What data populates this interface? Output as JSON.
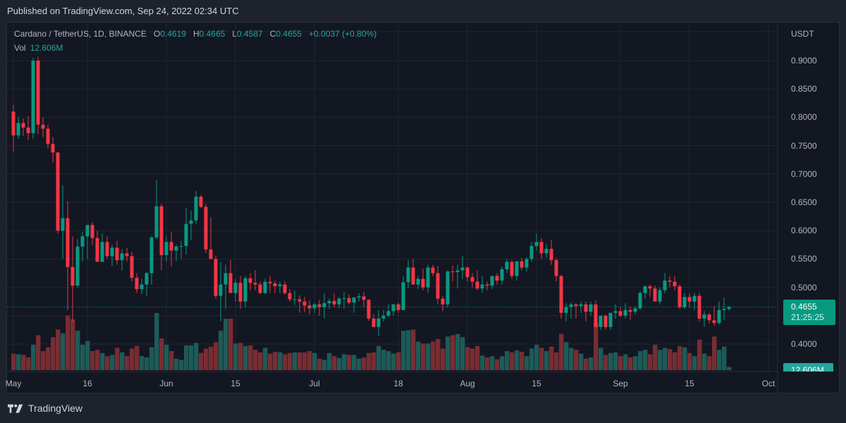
{
  "header": {
    "published": "Published on TradingView.com, Sep 24, 2022 02:34 UTC"
  },
  "legend": {
    "symbol": "Cardano / TetherUS, 1D, BINANCE",
    "o_label": "O",
    "o": "0.4619",
    "h_label": "H",
    "h": "0.4665",
    "l_label": "L",
    "l": "0.4587",
    "c_label": "C",
    "c": "0.4655",
    "change": "+0.0037 (+0.80%)",
    "vol_label": "Vol",
    "vol": "12.606M"
  },
  "price_axis": {
    "unit": "USDT",
    "current_price": "0.4655",
    "countdown": "21:25:25",
    "volume_tag": "12.606M"
  },
  "footer": {
    "brand": "TradingView"
  },
  "colors": {
    "up": "#089981",
    "down": "#f23645",
    "vol_up": "#1e5f5b",
    "vol_down": "#7d2e34",
    "background": "#131722",
    "grid": "#222631"
  },
  "chart_data": {
    "type": "candlestick",
    "title": "Cardano / TetherUS, 1D, BINANCE",
    "ylabel": "USDT",
    "ylim": [
      0.37,
      0.93
    ],
    "y_ticks": [
      "0.9000",
      "0.8500",
      "0.8000",
      "0.7500",
      "0.7000",
      "0.6500",
      "0.6000",
      "0.5500",
      "0.5000",
      "0.4000"
    ],
    "x_ticks": [
      {
        "label": "May",
        "day": 0
      },
      {
        "label": "16",
        "day": 15
      },
      {
        "label": "Jun",
        "day": 31
      },
      {
        "label": "15",
        "day": 45
      },
      {
        "label": "Jul",
        "day": 61
      },
      {
        "label": "18",
        "day": 78
      },
      {
        "label": "Aug",
        "day": 92
      },
      {
        "label": "15",
        "day": 106
      },
      {
        "label": "Sep",
        "day": 123
      },
      {
        "label": "15",
        "day": 137
      },
      {
        "label": "Oct",
        "day": 153
      }
    ],
    "start_date": "2022-04-30",
    "grid": true,
    "current_price": 0.4655,
    "series_note": "OHLC and volume (relative 0-1) per day, estimated from pixels",
    "ohlcv": [
      [
        0.81,
        0.822,
        0.74,
        0.768,
        0.26
      ],
      [
        0.768,
        0.8,
        0.762,
        0.79,
        0.25
      ],
      [
        0.79,
        0.798,
        0.767,
        0.782,
        0.24
      ],
      [
        0.782,
        0.802,
        0.76,
        0.772,
        0.2
      ],
      [
        0.772,
        0.905,
        0.762,
        0.9,
        0.4
      ],
      [
        0.9,
        0.907,
        0.77,
        0.787,
        0.55
      ],
      [
        0.787,
        0.8,
        0.765,
        0.78,
        0.3
      ],
      [
        0.78,
        0.787,
        0.745,
        0.753,
        0.36
      ],
      [
        0.753,
        0.765,
        0.72,
        0.738,
        0.52
      ],
      [
        0.738,
        0.738,
        0.595,
        0.6,
        0.64
      ],
      [
        0.6,
        0.68,
        0.55,
        0.622,
        0.58
      ],
      [
        0.622,
        0.652,
        0.46,
        0.536,
        0.86
      ],
      [
        0.536,
        0.59,
        0.44,
        0.503,
        0.8
      ],
      [
        0.503,
        0.585,
        0.5,
        0.572,
        0.62
      ],
      [
        0.572,
        0.598,
        0.545,
        0.59,
        0.4
      ],
      [
        0.59,
        0.61,
        0.55,
        0.61,
        0.46
      ],
      [
        0.61,
        0.615,
        0.575,
        0.587,
        0.3
      ],
      [
        0.587,
        0.6,
        0.545,
        0.545,
        0.32
      ],
      [
        0.545,
        0.595,
        0.545,
        0.58,
        0.27
      ],
      [
        0.58,
        0.59,
        0.55,
        0.555,
        0.22
      ],
      [
        0.555,
        0.575,
        0.538,
        0.57,
        0.24
      ],
      [
        0.57,
        0.582,
        0.54,
        0.548,
        0.35
      ],
      [
        0.548,
        0.567,
        0.53,
        0.56,
        0.28
      ],
      [
        0.56,
        0.57,
        0.546,
        0.555,
        0.22
      ],
      [
        0.555,
        0.563,
        0.51,
        0.517,
        0.34
      ],
      [
        0.517,
        0.525,
        0.49,
        0.497,
        0.38
      ],
      [
        0.497,
        0.515,
        0.488,
        0.505,
        0.22
      ],
      [
        0.505,
        0.528,
        0.484,
        0.525,
        0.2
      ],
      [
        0.525,
        0.59,
        0.505,
        0.588,
        0.36
      ],
      [
        0.588,
        0.69,
        0.585,
        0.643,
        0.9
      ],
      [
        0.643,
        0.647,
        0.53,
        0.557,
        0.5
      ],
      [
        0.557,
        0.59,
        0.545,
        0.58,
        0.4
      ],
      [
        0.58,
        0.598,
        0.537,
        0.565,
        0.3
      ],
      [
        0.565,
        0.575,
        0.546,
        0.572,
        0.18
      ],
      [
        0.572,
        0.582,
        0.55,
        0.573,
        0.16
      ],
      [
        0.573,
        0.64,
        0.558,
        0.612,
        0.39
      ],
      [
        0.612,
        0.636,
        0.583,
        0.618,
        0.39
      ],
      [
        0.618,
        0.67,
        0.612,
        0.66,
        0.43
      ],
      [
        0.66,
        0.663,
        0.64,
        0.642,
        0.27
      ],
      [
        0.642,
        0.647,
        0.56,
        0.567,
        0.34
      ],
      [
        0.567,
        0.624,
        0.55,
        0.55,
        0.37
      ],
      [
        0.55,
        0.556,
        0.48,
        0.485,
        0.44
      ],
      [
        0.485,
        0.545,
        0.44,
        0.505,
        0.62
      ],
      [
        0.505,
        0.54,
        0.462,
        0.525,
        0.81
      ],
      [
        0.525,
        0.548,
        0.492,
        0.49,
        0.81
      ],
      [
        0.49,
        0.515,
        0.475,
        0.508,
        0.42
      ],
      [
        0.508,
        0.52,
        0.462,
        0.475,
        0.43
      ],
      [
        0.475,
        0.52,
        0.465,
        0.516,
        0.38
      ],
      [
        0.516,
        0.525,
        0.495,
        0.508,
        0.39
      ],
      [
        0.508,
        0.53,
        0.495,
        0.505,
        0.32
      ],
      [
        0.505,
        0.51,
        0.488,
        0.49,
        0.28
      ],
      [
        0.49,
        0.515,
        0.488,
        0.51,
        0.35
      ],
      [
        0.51,
        0.52,
        0.49,
        0.507,
        0.26
      ],
      [
        0.507,
        0.512,
        0.49,
        0.502,
        0.29
      ],
      [
        0.502,
        0.51,
        0.49,
        0.505,
        0.28
      ],
      [
        0.505,
        0.511,
        0.487,
        0.49,
        0.25
      ],
      [
        0.49,
        0.497,
        0.475,
        0.479,
        0.27
      ],
      [
        0.479,
        0.494,
        0.469,
        0.479,
        0.28
      ],
      [
        0.479,
        0.486,
        0.455,
        0.475,
        0.28
      ],
      [
        0.475,
        0.483,
        0.456,
        0.468,
        0.28
      ],
      [
        0.468,
        0.477,
        0.452,
        0.463,
        0.3
      ],
      [
        0.463,
        0.473,
        0.455,
        0.47,
        0.27
      ],
      [
        0.47,
        0.478,
        0.45,
        0.465,
        0.18
      ],
      [
        0.465,
        0.49,
        0.445,
        0.472,
        0.16
      ],
      [
        0.472,
        0.48,
        0.462,
        0.476,
        0.27
      ],
      [
        0.476,
        0.49,
        0.465,
        0.47,
        0.22
      ],
      [
        0.47,
        0.483,
        0.463,
        0.48,
        0.19
      ],
      [
        0.48,
        0.492,
        0.462,
        0.481,
        0.25
      ],
      [
        0.481,
        0.487,
        0.47,
        0.473,
        0.24
      ],
      [
        0.473,
        0.483,
        0.455,
        0.482,
        0.24
      ],
      [
        0.482,
        0.49,
        0.475,
        0.484,
        0.18
      ],
      [
        0.484,
        0.492,
        0.465,
        0.478,
        0.2
      ],
      [
        0.478,
        0.479,
        0.441,
        0.445,
        0.27
      ],
      [
        0.445,
        0.452,
        0.43,
        0.43,
        0.28
      ],
      [
        0.43,
        0.46,
        0.415,
        0.445,
        0.38
      ],
      [
        0.445,
        0.46,
        0.44,
        0.45,
        0.32
      ],
      [
        0.45,
        0.47,
        0.448,
        0.458,
        0.3
      ],
      [
        0.458,
        0.47,
        0.45,
        0.47,
        0.26
      ],
      [
        0.47,
        0.473,
        0.455,
        0.46,
        0.28
      ],
      [
        0.46,
        0.52,
        0.46,
        0.509,
        0.62
      ],
      [
        0.509,
        0.548,
        0.498,
        0.535,
        0.63
      ],
      [
        0.535,
        0.55,
        0.505,
        0.505,
        0.64
      ],
      [
        0.505,
        0.52,
        0.497,
        0.515,
        0.45
      ],
      [
        0.515,
        0.533,
        0.495,
        0.5,
        0.42
      ],
      [
        0.5,
        0.54,
        0.49,
        0.535,
        0.42
      ],
      [
        0.535,
        0.54,
        0.52,
        0.525,
        0.45
      ],
      [
        0.525,
        0.538,
        0.47,
        0.48,
        0.49
      ],
      [
        0.48,
        0.485,
        0.458,
        0.47,
        0.34
      ],
      [
        0.47,
        0.53,
        0.465,
        0.528,
        0.53
      ],
      [
        0.528,
        0.538,
        0.51,
        0.527,
        0.55
      ],
      [
        0.527,
        0.54,
        0.498,
        0.53,
        0.57
      ],
      [
        0.53,
        0.556,
        0.515,
        0.535,
        0.52
      ],
      [
        0.535,
        0.537,
        0.51,
        0.518,
        0.36
      ],
      [
        0.518,
        0.525,
        0.5,
        0.51,
        0.34
      ],
      [
        0.51,
        0.53,
        0.495,
        0.498,
        0.38
      ],
      [
        0.498,
        0.52,
        0.49,
        0.505,
        0.23
      ],
      [
        0.505,
        0.51,
        0.495,
        0.503,
        0.2
      ],
      [
        0.503,
        0.52,
        0.497,
        0.52,
        0.22
      ],
      [
        0.52,
        0.525,
        0.505,
        0.512,
        0.17
      ],
      [
        0.512,
        0.537,
        0.505,
        0.532,
        0.22
      ],
      [
        0.532,
        0.55,
        0.525,
        0.545,
        0.3
      ],
      [
        0.545,
        0.548,
        0.515,
        0.52,
        0.28
      ],
      [
        0.52,
        0.545,
        0.512,
        0.546,
        0.31
      ],
      [
        0.546,
        0.552,
        0.53,
        0.535,
        0.29
      ],
      [
        0.535,
        0.553,
        0.528,
        0.55,
        0.22
      ],
      [
        0.55,
        0.58,
        0.545,
        0.573,
        0.34
      ],
      [
        0.573,
        0.595,
        0.565,
        0.58,
        0.4
      ],
      [
        0.58,
        0.587,
        0.55,
        0.56,
        0.35
      ],
      [
        0.56,
        0.577,
        0.552,
        0.568,
        0.3
      ],
      [
        0.568,
        0.584,
        0.54,
        0.548,
        0.37
      ],
      [
        0.548,
        0.552,
        0.51,
        0.52,
        0.28
      ],
      [
        0.52,
        0.522,
        0.445,
        0.455,
        0.57
      ],
      [
        0.455,
        0.472,
        0.44,
        0.465,
        0.44
      ],
      [
        0.465,
        0.473,
        0.445,
        0.47,
        0.35
      ],
      [
        0.47,
        0.472,
        0.445,
        0.467,
        0.32
      ],
      [
        0.467,
        0.475,
        0.455,
        0.47,
        0.26
      ],
      [
        0.47,
        0.475,
        0.44,
        0.457,
        0.18
      ],
      [
        0.457,
        0.475,
        0.45,
        0.47,
        0.2
      ],
      [
        0.47,
        0.477,
        0.43,
        0.43,
        0.74
      ],
      [
        0.43,
        0.45,
        0.425,
        0.45,
        0.35
      ],
      [
        0.45,
        0.452,
        0.425,
        0.43,
        0.24
      ],
      [
        0.43,
        0.455,
        0.425,
        0.455,
        0.27
      ],
      [
        0.455,
        0.47,
        0.445,
        0.458,
        0.28
      ],
      [
        0.458,
        0.465,
        0.447,
        0.45,
        0.22
      ],
      [
        0.45,
        0.472,
        0.445,
        0.46,
        0.25
      ],
      [
        0.46,
        0.465,
        0.443,
        0.457,
        0.2
      ],
      [
        0.457,
        0.467,
        0.452,
        0.463,
        0.22
      ],
      [
        0.463,
        0.493,
        0.46,
        0.49,
        0.3
      ],
      [
        0.49,
        0.503,
        0.48,
        0.502,
        0.32
      ],
      [
        0.502,
        0.505,
        0.483,
        0.498,
        0.25
      ],
      [
        0.498,
        0.503,
        0.475,
        0.475,
        0.4
      ],
      [
        0.475,
        0.5,
        0.47,
        0.495,
        0.32
      ],
      [
        0.495,
        0.525,
        0.49,
        0.512,
        0.35
      ],
      [
        0.512,
        0.52,
        0.5,
        0.51,
        0.33
      ],
      [
        0.51,
        0.52,
        0.495,
        0.502,
        0.28
      ],
      [
        0.502,
        0.505,
        0.462,
        0.465,
        0.38
      ],
      [
        0.465,
        0.49,
        0.462,
        0.483,
        0.36
      ],
      [
        0.483,
        0.489,
        0.465,
        0.475,
        0.27
      ],
      [
        0.475,
        0.49,
        0.46,
        0.485,
        0.22
      ],
      [
        0.485,
        0.49,
        0.44,
        0.445,
        0.48
      ],
      [
        0.445,
        0.458,
        0.43,
        0.452,
        0.26
      ],
      [
        0.452,
        0.455,
        0.436,
        0.442,
        0.22
      ],
      [
        0.442,
        0.467,
        0.432,
        0.437,
        0.53
      ],
      [
        0.437,
        0.475,
        0.435,
        0.46,
        0.32
      ],
      [
        0.46,
        0.482,
        0.442,
        0.462,
        0.37
      ],
      [
        0.4619,
        0.4665,
        0.4587,
        0.4655,
        0.05
      ]
    ]
  }
}
